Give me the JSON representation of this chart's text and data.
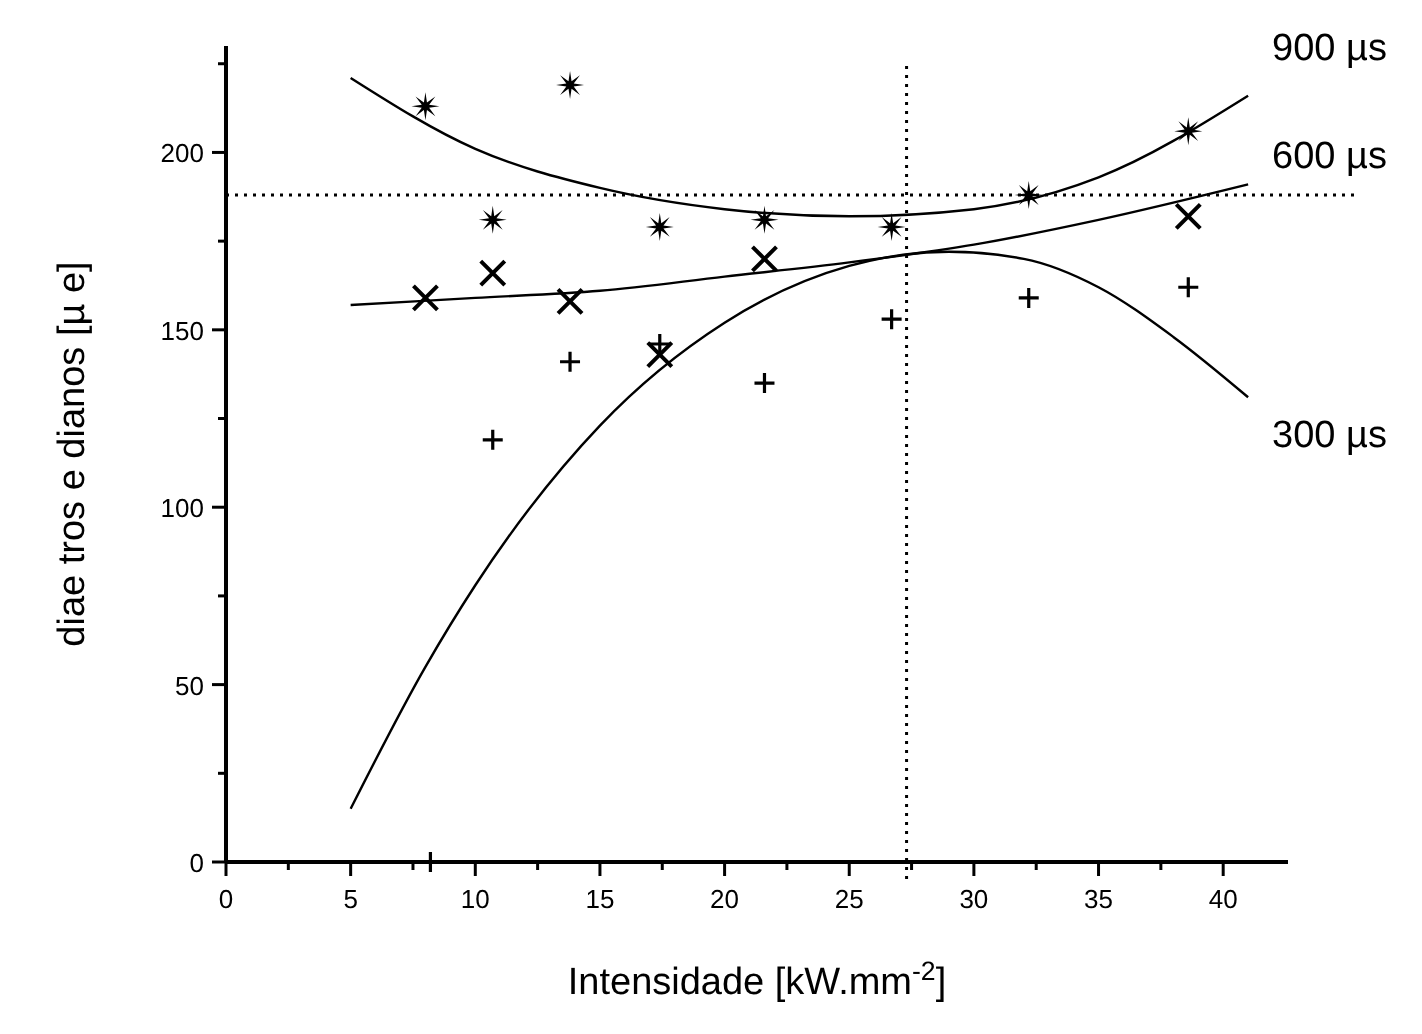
{
  "chart_data": {
    "type": "scatter",
    "xlabel": "Intensidade [kW.mm$^{-2}$]",
    "ylabel": "diae tros e dianos [µ   e]",
    "xlim": [
      0,
      42.6
    ],
    "ylim": [
      0,
      230
    ],
    "xticks": [
      0,
      {
        "value": 2.5,
        "label": null
      },
      5,
      {
        "value": 7.5,
        "label": null
      },
      10,
      {
        "value": 12.5,
        "label": null
      },
      15,
      {
        "value": 17.5,
        "label": null
      },
      20,
      {
        "value": 22.5,
        "label": null
      },
      25,
      {
        "value": 27.5,
        "label": null
      },
      30,
      {
        "value": 32.5,
        "label": null
      },
      35,
      {
        "value": 37.5,
        "label": null
      },
      40
    ],
    "yticks": [
      0,
      {
        "value": 25,
        "label": null
      },
      50,
      {
        "value": 75,
        "label": null
      },
      100,
      {
        "value": 125,
        "label": null
      },
      150,
      {
        "value": 175,
        "label": null
      },
      200,
      {
        "value": 225,
        "label": null
      }
    ],
    "grid": false,
    "ref_lines": [
      {
        "axis": "y",
        "value": 188,
        "line_style": "dotted",
        "color": "#000000"
      },
      {
        "axis": "x",
        "value": 27.3,
        "line_style": "dotted",
        "color": "#000000"
      }
    ],
    "series": [
      {
        "marker": "star",
        "color": "#000000",
        "x": [
          8,
          10.7,
          13.8,
          17.4,
          21.6,
          26.7,
          32.2,
          38.6
        ],
        "values": [
          213,
          181,
          219,
          179,
          181,
          179,
          188,
          206
        ]
      },
      {
        "marker": "x",
        "color": "#000000",
        "x": [
          8,
          10.7,
          13.8,
          17.4,
          21.6,
          38.6
        ],
        "values": [
          159,
          166,
          158,
          143,
          170,
          182
        ]
      },
      {
        "marker": "cross",
        "color": "#000000",
        "x": [
          8.2,
          10.7,
          13.8,
          17.4,
          21.6,
          26.7,
          32.2,
          38.6
        ],
        "values": [
          0,
          119,
          141,
          146,
          135,
          153,
          159,
          162
        ]
      },
      {
        "type": "line",
        "name": "900 µs",
        "marker": "none",
        "line_style": "solid",
        "color": "#000000",
        "x": [
          5,
          10,
          15,
          20,
          25,
          30,
          35,
          41
        ],
        "values": [
          221,
          201,
          190,
          184,
          182,
          184,
          193,
          216
        ]
      },
      {
        "type": "line",
        "name": "600 µs",
        "marker": "none",
        "line_style": "solid",
        "color": "#000000",
        "x": [
          5,
          10,
          15,
          20,
          25,
          30,
          35,
          41
        ],
        "values": [
          157,
          159,
          161,
          165,
          169,
          174,
          181,
          191
        ]
      },
      {
        "type": "line",
        "name": "300 µs",
        "marker": "none",
        "line_style": "solid",
        "color": "#000000",
        "x": [
          5,
          8,
          10,
          15,
          20,
          25,
          29,
          32,
          35,
          38,
          41
        ],
        "values": [
          15,
          55,
          78,
          123,
          152,
          168,
          172,
          170,
          162,
          148,
          131
        ]
      }
    ]
  }
}
